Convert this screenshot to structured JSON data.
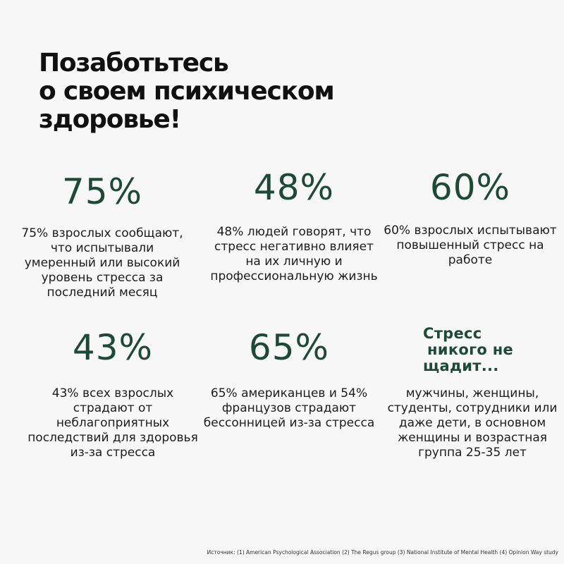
{
  "title": {
    "line1": "Позаботьтесь",
    "line2": "о своем психическом",
    "line3": "здоровье!"
  },
  "stats": [
    {
      "value": "75%",
      "description": "75% взрослых сообщают, что испытывали умеренный или высокий уровень стресса за последний месяц"
    },
    {
      "value": "48%",
      "description": "48% людей говорят, что стресс негативно влияет на их личную и профессиональную жизнь"
    },
    {
      "value": "60%",
      "description": "60% взрослых испытывают повышенный стресс на работе"
    },
    {
      "value": "43%",
      "description": "43% всех взрослых страдают от неблагоприятных последствий для здоровья из-за стресса"
    },
    {
      "value": "65%",
      "description": "65% американцев и 54% французов страдают бессонницей из-за стресса"
    }
  ],
  "highlight": {
    "line1": "Стресс",
    "line2": "никого  не",
    "line3": "щадит...",
    "description": "мужчины, женщины, студенты, сотрудники или даже дети, в основном женщины и возрастная группа 25-35 лет"
  },
  "footnote": "Источник: (1) American Psychological Association (2) The Regus group (3) National Institute of Mental Health (4) Opinion Way study",
  "colors": {
    "background": "#f7f7f7",
    "accent": "#1d4a37",
    "text": "#1c1c1c"
  }
}
